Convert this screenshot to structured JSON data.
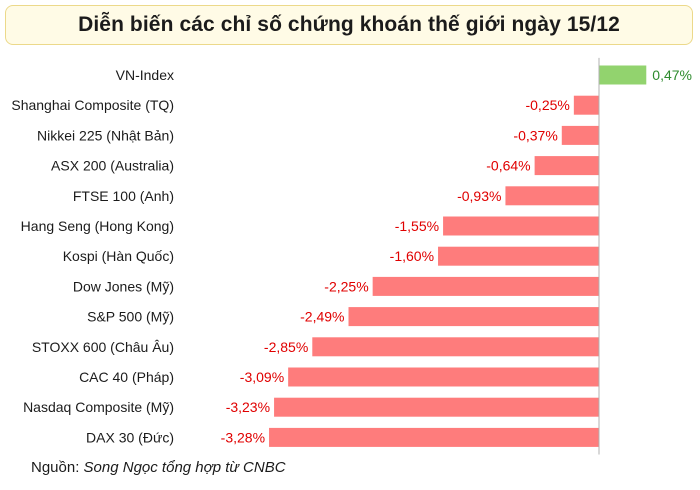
{
  "title": "Diễn biến các chỉ số chứng khoán thế giới ngày 15/12",
  "source": {
    "label": "Nguồn: ",
    "text": "Song Ngọc tổng hợp từ CNBC"
  },
  "colors": {
    "positive": "#92d36e",
    "negative": "#fe7c7c",
    "positive_text": "#2e8b2e",
    "negative_text": "#e00000",
    "category_text": "#1b1b1b",
    "axis": "#b0b0b0"
  },
  "chart_data": {
    "type": "bar",
    "orientation": "horizontal",
    "title": "Diễn biến các chỉ số chứng khoán thế giới ngày 15/12",
    "categories": [
      "VN-Index",
      "Shanghai Composite (TQ)",
      "Nikkei 225 (Nhật Bản)",
      "ASX 200 (Australia)",
      "FTSE 100 (Anh)",
      "Hang Seng (Hong Kong)",
      "Kospi (Hàn Quốc)",
      "Dow Jones (Mỹ)",
      "S&P 500 (Mỹ)",
      "STOXX 600 (Châu Âu)",
      "CAC 40 (Pháp)",
      "Nasdaq Composite (Mỹ)",
      "DAX 30 (Đức)"
    ],
    "values": [
      0.47,
      -0.25,
      -0.37,
      -0.64,
      -0.93,
      -1.55,
      -1.6,
      -2.25,
      -2.49,
      -2.85,
      -3.09,
      -3.23,
      -3.28
    ],
    "value_labels": [
      "0,47%",
      "-0,25%",
      "-0,37%",
      "-0,64%",
      "-0,93%",
      "-1,55%",
      "-1,60%",
      "-2,25%",
      "-2,49%",
      "-2,85%",
      "-3,09%",
      "-3,23%",
      "-3,28%"
    ],
    "unit": "%",
    "xlim": [
      -3.28,
      0.47
    ],
    "grid": false,
    "legend": "none"
  }
}
